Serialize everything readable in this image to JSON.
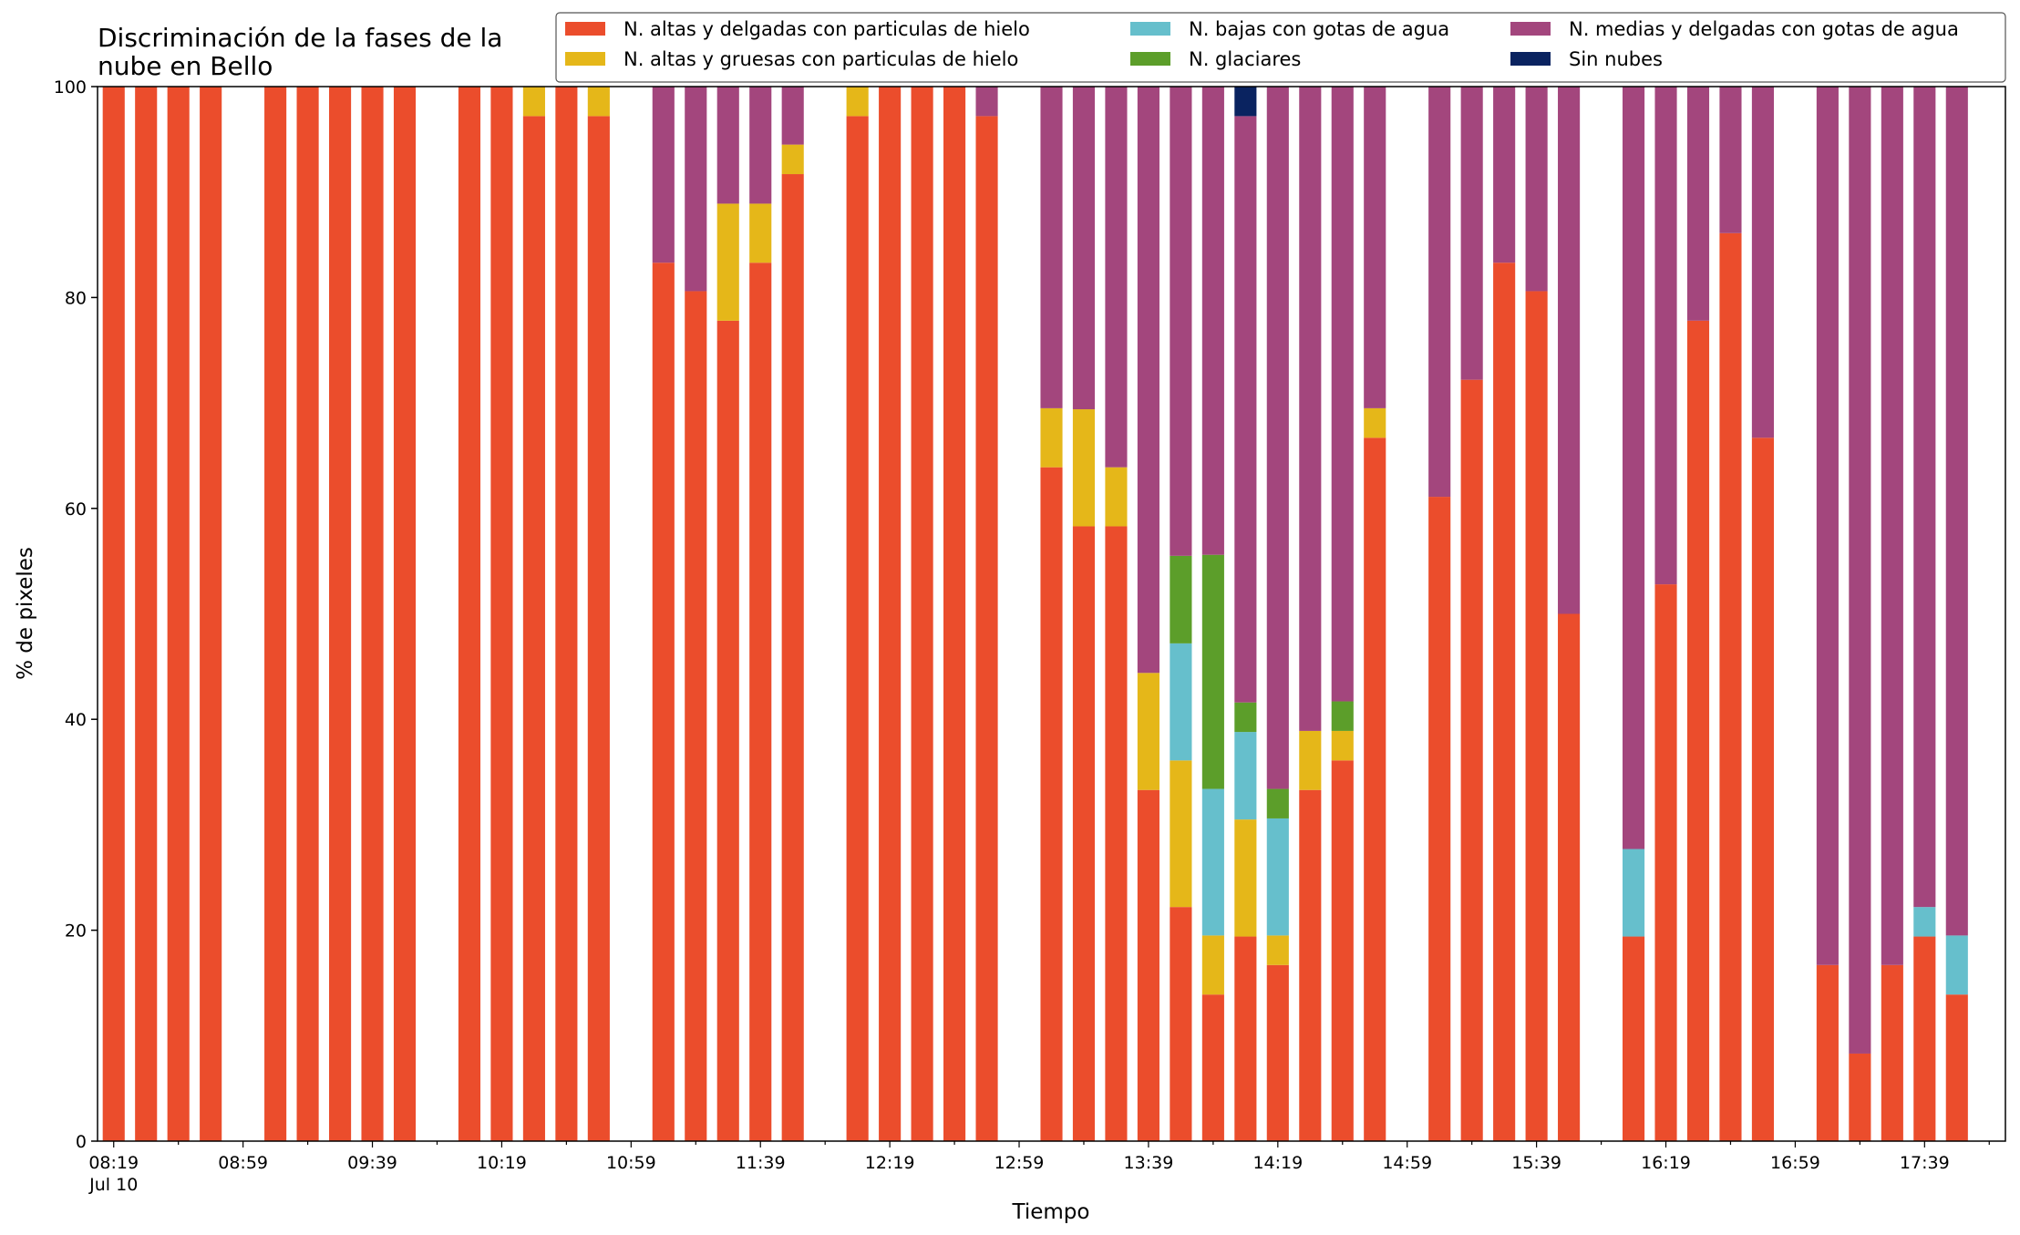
{
  "chart_data": {
    "type": "bar",
    "stacked": true,
    "title": "Discriminación de la fases de la nube en Bello",
    "title_lines": [
      "Discriminación de la fases de la",
      "nube en Bello"
    ],
    "xlabel": "Tiempo",
    "ylabel": "% de pixeles",
    "ylim": [
      0,
      100
    ],
    "yticks": [
      0,
      20,
      40,
      60,
      80,
      100
    ],
    "xlim_minutes": [
      -5,
      585
    ],
    "legend_position": "top-right",
    "xtick_labels": [
      {
        "label": "08:19",
        "sublabel": "Jul 10",
        "t": 0
      },
      {
        "label": "08:59",
        "t": 40
      },
      {
        "label": "09:39",
        "t": 80
      },
      {
        "label": "10:19",
        "t": 120
      },
      {
        "label": "10:59",
        "t": 160
      },
      {
        "label": "11:39",
        "t": 200
      },
      {
        "label": "12:19",
        "t": 240
      },
      {
        "label": "12:59",
        "t": 280
      },
      {
        "label": "13:39",
        "t": 320
      },
      {
        "label": "14:19",
        "t": 360
      },
      {
        "label": "14:59",
        "t": 400
      },
      {
        "label": "15:39",
        "t": 440
      },
      {
        "label": "16:19",
        "t": 480
      },
      {
        "label": "16:59",
        "t": 520
      },
      {
        "label": "17:39",
        "t": 560
      }
    ],
    "x": [
      "08:19",
      "08:29",
      "08:39",
      "08:49",
      "09:09",
      "09:19",
      "09:29",
      "09:39",
      "09:49",
      "10:09",
      "10:19",
      "10:29",
      "10:39",
      "10:49",
      "11:09",
      "11:19",
      "11:29",
      "11:39",
      "11:49",
      "12:09",
      "12:19",
      "12:29",
      "12:39",
      "12:49",
      "13:09",
      "13:19",
      "13:29",
      "13:39",
      "13:49",
      "13:59",
      "14:09",
      "14:19",
      "14:29",
      "14:39",
      "14:49",
      "15:09",
      "15:19",
      "15:29",
      "15:39",
      "15:49",
      "16:09",
      "16:19",
      "16:29",
      "16:39",
      "16:49",
      "17:09",
      "17:19",
      "17:29",
      "17:39",
      "17:49"
    ],
    "series": [
      {
        "name": "N. altas y delgadas con particulas de hielo",
        "color": "#EB4D2C",
        "values": [
          100,
          100,
          100,
          100,
          100,
          100,
          100,
          100,
          100,
          100,
          100,
          97.2,
          100,
          97.2,
          83.3,
          80.6,
          77.8,
          83.3,
          91.7,
          97.2,
          100,
          100,
          100,
          97.2,
          63.9,
          58.3,
          58.3,
          33.3,
          22.2,
          13.9,
          19.4,
          16.7,
          33.3,
          36.1,
          66.7,
          61.1,
          72.2,
          83.3,
          80.6,
          50,
          19.4,
          52.8,
          77.8,
          86.1,
          66.7,
          16.7,
          8.3,
          16.7,
          19.4,
          13.9
        ]
      },
      {
        "name": "N. altas y gruesas con particulas de hielo",
        "color": "#E5B719",
        "values": [
          0,
          0,
          0,
          0,
          0,
          0,
          0,
          0,
          0,
          0,
          0,
          2.8,
          0,
          2.8,
          0,
          0,
          11.1,
          5.6,
          2.8,
          2.8,
          0,
          0,
          0,
          0,
          5.6,
          11.1,
          5.6,
          11.1,
          13.9,
          5.6,
          11.1,
          2.8,
          5.6,
          2.8,
          2.8,
          0,
          0,
          0,
          0,
          0,
          0,
          0,
          0,
          0,
          0,
          0,
          0,
          0,
          0,
          0
        ]
      },
      {
        "name": "N. bajas con gotas de agua",
        "color": "#66BFCC",
        "values": [
          0,
          0,
          0,
          0,
          0,
          0,
          0,
          0,
          0,
          0,
          0,
          0,
          0,
          0,
          0,
          0,
          0,
          0,
          0,
          0,
          0,
          0,
          0,
          0,
          0,
          0,
          0,
          0,
          11.1,
          13.9,
          8.3,
          11.1,
          0,
          0,
          0,
          0,
          0,
          0,
          0,
          0,
          8.3,
          0,
          0,
          0,
          0,
          0,
          0,
          0,
          2.8,
          5.6
        ]
      },
      {
        "name": "N. glaciares",
        "color": "#5C9E2A",
        "values": [
          0,
          0,
          0,
          0,
          0,
          0,
          0,
          0,
          0,
          0,
          0,
          0,
          0,
          0,
          0,
          0,
          0,
          0,
          0,
          0,
          0,
          0,
          0,
          0,
          0,
          0,
          0,
          0,
          8.3,
          22.2,
          2.8,
          2.8,
          0,
          2.8,
          0,
          0,
          0,
          0,
          0,
          0,
          0,
          0,
          0,
          0,
          0,
          0,
          0,
          0,
          0,
          0
        ]
      },
      {
        "name": "N. medias y delgadas con gotas de agua",
        "color": "#A3467D",
        "values": [
          0,
          0,
          0,
          0,
          0,
          0,
          0,
          0,
          0,
          0,
          0,
          0,
          0,
          0,
          16.7,
          19.4,
          11.1,
          11.1,
          5.5,
          0,
          0,
          0,
          0,
          2.8,
          30.5,
          30.6,
          36.1,
          55.6,
          44.5,
          44.4,
          55.6,
          66.6,
          61.1,
          58.3,
          30.5,
          38.9,
          27.8,
          16.7,
          19.4,
          50,
          72.3,
          47.2,
          22.2,
          13.9,
          33.3,
          83.3,
          91.7,
          83.3,
          77.8,
          80.5
        ]
      },
      {
        "name": "Sin nubes",
        "color": "#0A2360",
        "values": [
          0,
          0,
          0,
          0,
          0,
          0,
          0,
          0,
          0,
          0,
          0,
          0,
          0,
          0,
          0,
          0,
          0,
          0,
          0,
          0,
          0,
          0,
          0,
          0,
          0,
          0,
          0,
          0,
          0,
          0,
          2.8,
          0,
          0,
          0,
          0,
          0,
          0,
          0,
          0,
          0,
          0,
          0,
          0,
          0,
          0,
          0,
          0,
          0,
          0,
          0
        ]
      }
    ]
  }
}
